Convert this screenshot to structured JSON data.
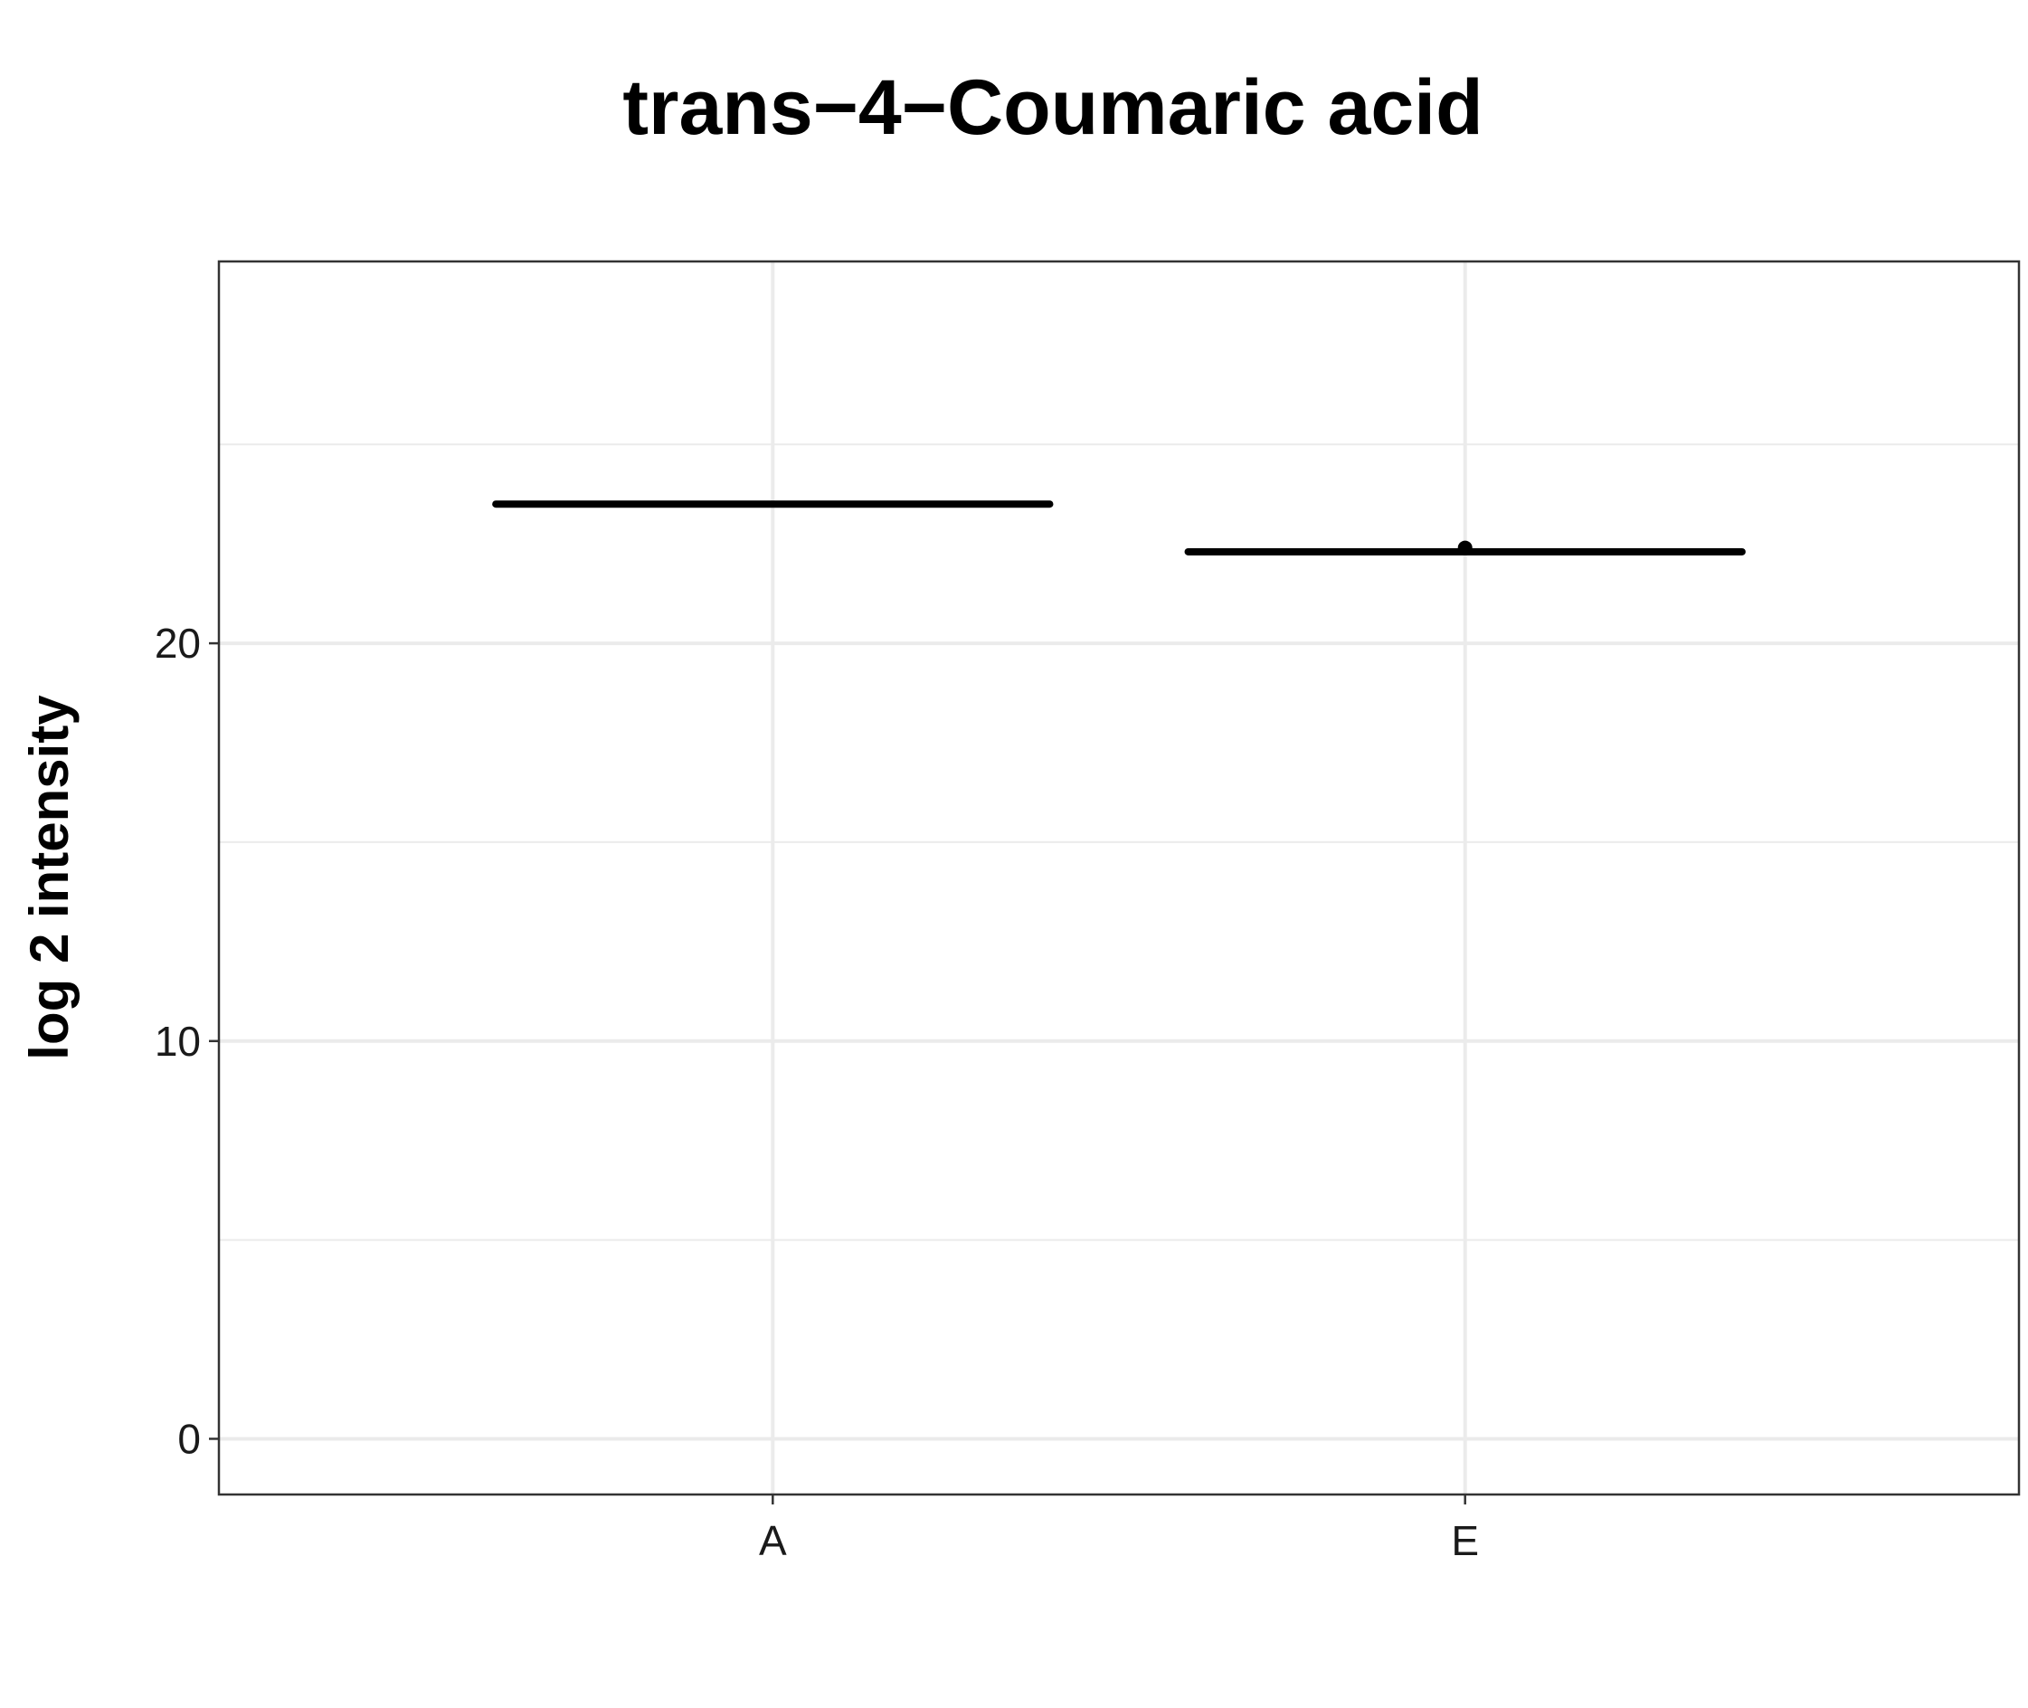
{
  "chart_data": {
    "type": "boxplot",
    "title": "trans−4−Coumaric acid",
    "xlabel": "",
    "ylabel": "log 2 intensity",
    "categories": [
      "A",
      "E"
    ],
    "boxes": [
      {
        "category": "A",
        "median": 23.5,
        "q1": 23.5,
        "q3": 23.5,
        "whisker_low": 23.5,
        "whisker_high": 23.5,
        "outliers": []
      },
      {
        "category": "E",
        "median": 22.3,
        "q1": 22.3,
        "q3": 22.3,
        "whisker_low": 22.3,
        "whisker_high": 22.3,
        "outliers": [
          22.4
        ]
      }
    ],
    "yticks": [
      0,
      10,
      20
    ],
    "ylim": [
      -1.4,
      29.6
    ],
    "grid": true,
    "legend": "none",
    "colors": {
      "box": "#000000",
      "grid": "#ebebeb",
      "panel_border": "#333333"
    }
  }
}
